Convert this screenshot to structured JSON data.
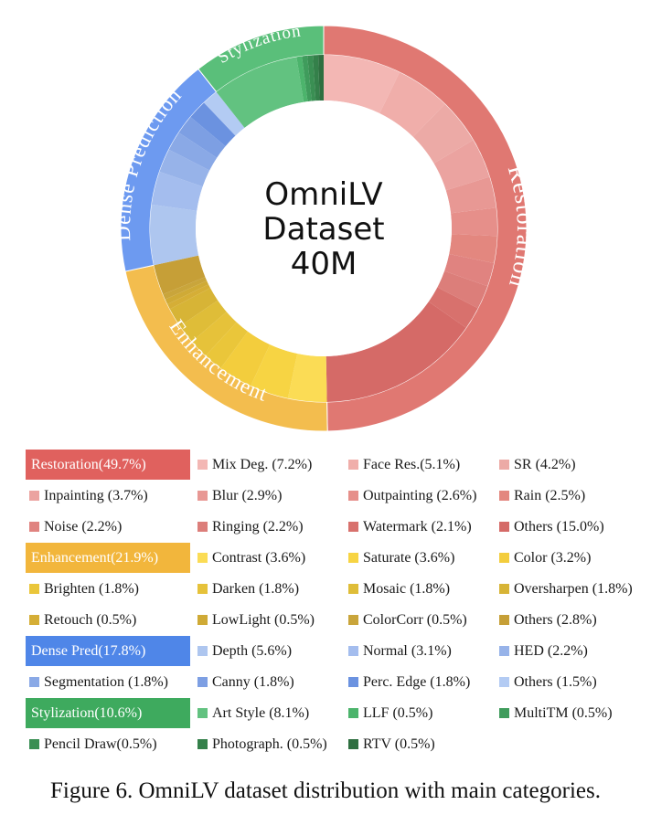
{
  "chart_data": {
    "type": "pie",
    "variant": "nested-donut",
    "title": "OmniLV Dataset 40M",
    "center_label": [
      "OmniLV",
      "Dataset",
      "40M"
    ],
    "categories": [
      {
        "name": "Restoration",
        "legend_label": "Restoration(49.7%)",
        "ring_label": "Restoration",
        "value": 49.7,
        "color": "#e0615e",
        "ring_color": "#e07872",
        "subcategories": [
          {
            "label": "Mix Deg. (7.2%)",
            "value": 7.2,
            "color": "#f3b7b4"
          },
          {
            "label": "Face Res.(5.1%)",
            "value": 5.1,
            "color": "#f0aeaa"
          },
          {
            "label": "SR (4.2%)",
            "value": 4.2,
            "color": "#ecaaa6"
          },
          {
            "label": "Inpainting (3.7%)",
            "value": 3.7,
            "color": "#eba3a0"
          },
          {
            "label": "Blur (2.9%)",
            "value": 2.9,
            "color": "#e89894"
          },
          {
            "label": "Outpainting (2.6%)",
            "value": 2.6,
            "color": "#e68f8a"
          },
          {
            "label": "Rain (2.5%)",
            "value": 2.5,
            "color": "#e3877f"
          },
          {
            "label": "Noise (2.2%)",
            "value": 2.2,
            "color": "#e08380"
          },
          {
            "label": "Ringing (2.2%)",
            "value": 2.2,
            "color": "#dc7e7a"
          },
          {
            "label": "Watermark (2.1%)",
            "value": 2.1,
            "color": "#d8716d"
          },
          {
            "label": "Others (15.0%)",
            "value": 15.0,
            "color": "#d56a67"
          }
        ]
      },
      {
        "name": "Enhancement",
        "legend_label": "Enhancement(21.9%)",
        "ring_label": "Enhancement",
        "value": 21.9,
        "color": "#f2b63c",
        "ring_color": "#f3bd4e",
        "subcategories": [
          {
            "label": "Contrast (3.6%)",
            "value": 3.6,
            "color": "#fbdc55"
          },
          {
            "label": "Saturate (3.6%)",
            "value": 3.6,
            "color": "#f7d443"
          },
          {
            "label": "Color (3.2%)",
            "value": 3.2,
            "color": "#f3cd3d"
          },
          {
            "label": "Brighten (1.8%)",
            "value": 1.8,
            "color": "#eac63a"
          },
          {
            "label": "Darken (1.8%)",
            "value": 1.8,
            "color": "#e6c23a"
          },
          {
            "label": "Mosaic (1.8%)",
            "value": 1.8,
            "color": "#dfbd38"
          },
          {
            "label": "Oversharpen (1.8%)",
            "value": 1.8,
            "color": "#d7b436"
          },
          {
            "label": "Retouch (0.5%)",
            "value": 0.5,
            "color": "#d5ae36"
          },
          {
            "label": "LowLight (0.5%)",
            "value": 0.5,
            "color": "#cfaa36"
          },
          {
            "label": "ColorCorr (0.5%)",
            "value": 0.5,
            "color": "#c9a53b"
          },
          {
            "label": "Others (2.8%)",
            "value": 2.8,
            "color": "#c69f37"
          }
        ]
      },
      {
        "name": "Dense Pred",
        "legend_label": "Dense Pred(17.8%)",
        "ring_label": "Dense Prediction",
        "value": 17.8,
        "color": "#4f86e8",
        "ring_color": "#6d9af0",
        "subcategories": [
          {
            "label": "Depth (5.6%)",
            "value": 5.6,
            "color": "#aec6ef"
          },
          {
            "label": "Normal (3.1%)",
            "value": 3.1,
            "color": "#a4bdee"
          },
          {
            "label": "HED (2.2%)",
            "value": 2.2,
            "color": "#97b3e9"
          },
          {
            "label": "Segmentation (1.8%)",
            "value": 1.8,
            "color": "#8aa9e6"
          },
          {
            "label": "Canny (1.8%)",
            "value": 1.8,
            "color": "#7d9fe3"
          },
          {
            "label": "Perc. Edge (1.8%)",
            "value": 1.8,
            "color": "#6b92e0"
          },
          {
            "label": "Others (1.5%)",
            "value": 1.5,
            "color": "#b3cbf3"
          }
        ]
      },
      {
        "name": "Stylization",
        "legend_label": "Stylization(10.6%)",
        "ring_label": "Stylization",
        "value": 10.6,
        "color": "#3eaa5e",
        "ring_color": "#5abf7a",
        "subcategories": [
          {
            "label": "Art Style (8.1%)",
            "value": 8.1,
            "color": "#62c280"
          },
          {
            "label": "LLF (0.5%)",
            "value": 0.5,
            "color": "#4cb46c"
          },
          {
            "label": "MultiTM (0.5%)",
            "value": 0.5,
            "color": "#3f9c5c"
          },
          {
            "label": "Pencil Draw(0.5%)",
            "value": 0.5,
            "color": "#3a8f53"
          },
          {
            "label": "Photograph. (0.5%)",
            "value": 0.5,
            "color": "#34804a"
          },
          {
            "label": "RTV (0.5%)",
            "value": 0.5,
            "color": "#2e6f40"
          }
        ]
      }
    ]
  },
  "caption": "Figure 6. OmniLV dataset distribution with main categories."
}
